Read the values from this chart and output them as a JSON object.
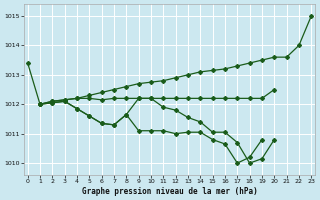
{
  "title": "Graphe pression niveau de la mer (hPa)",
  "background_color": "#cce8f0",
  "grid_color": "#ffffff",
  "line_color": "#1a5c1a",
  "xlim": [
    -0.3,
    23.3
  ],
  "ylim": [
    1009.6,
    1015.4
  ],
  "yticks": [
    1010,
    1011,
    1012,
    1013,
    1014,
    1015
  ],
  "xticks": [
    0,
    1,
    2,
    3,
    4,
    5,
    6,
    7,
    8,
    9,
    10,
    11,
    12,
    13,
    14,
    15,
    16,
    17,
    18,
    19,
    20,
    21,
    22,
    23
  ],
  "series": [
    {
      "x": [
        0,
        1,
        2,
        3,
        4,
        5,
        6,
        7,
        8,
        9,
        10,
        11,
        12,
        13,
        14,
        15,
        16,
        17,
        18,
        19,
        20,
        21,
        22,
        23
      ],
      "y": [
        1013.4,
        1012.0,
        1012.1,
        1012.15,
        1012.2,
        1012.3,
        1012.4,
        1012.5,
        1012.6,
        1012.7,
        1012.75,
        1012.8,
        1012.9,
        1013.0,
        1013.1,
        1013.15,
        1013.2,
        1013.3,
        1013.4,
        1013.5,
        1013.6,
        1013.6,
        1014.0,
        1015.0
      ]
    },
    {
      "x": [
        1,
        2,
        3,
        4,
        5,
        6,
        7,
        8,
        9,
        10,
        11,
        12,
        13,
        14,
        15,
        16,
        17,
        18,
        19,
        20
      ],
      "y": [
        1012.0,
        1012.1,
        1012.15,
        1012.2,
        1012.2,
        1012.15,
        1012.2,
        1012.2,
        1012.2,
        1012.2,
        1012.2,
        1012.2,
        1012.2,
        1012.2,
        1012.2,
        1012.2,
        1012.2,
        1012.2,
        1012.2,
        1012.5
      ]
    },
    {
      "x": [
        1,
        2,
        3,
        4,
        5,
        6,
        7,
        8,
        9,
        10,
        11,
        12,
        13,
        14,
        15,
        16,
        17,
        18,
        19,
        20
      ],
      "y": [
        1012.0,
        1012.05,
        1012.1,
        1011.85,
        1011.6,
        1011.35,
        1011.3,
        1011.65,
        1012.2,
        1012.2,
        1011.9,
        1011.8,
        1011.55,
        1011.4,
        1011.05,
        1011.05,
        1010.7,
        1010.0,
        1010.15,
        1010.8
      ]
    },
    {
      "x": [
        1,
        2,
        3,
        4,
        5,
        6,
        7,
        8,
        9,
        10,
        11,
        12,
        13,
        14,
        15,
        16,
        17,
        18,
        19
      ],
      "y": [
        1012.0,
        1012.05,
        1012.1,
        1011.85,
        1011.6,
        1011.35,
        1011.3,
        1011.65,
        1011.1,
        1011.1,
        1011.1,
        1011.0,
        1011.05,
        1011.05,
        1010.8,
        1010.65,
        1010.0,
        1010.2,
        1010.8
      ]
    }
  ]
}
